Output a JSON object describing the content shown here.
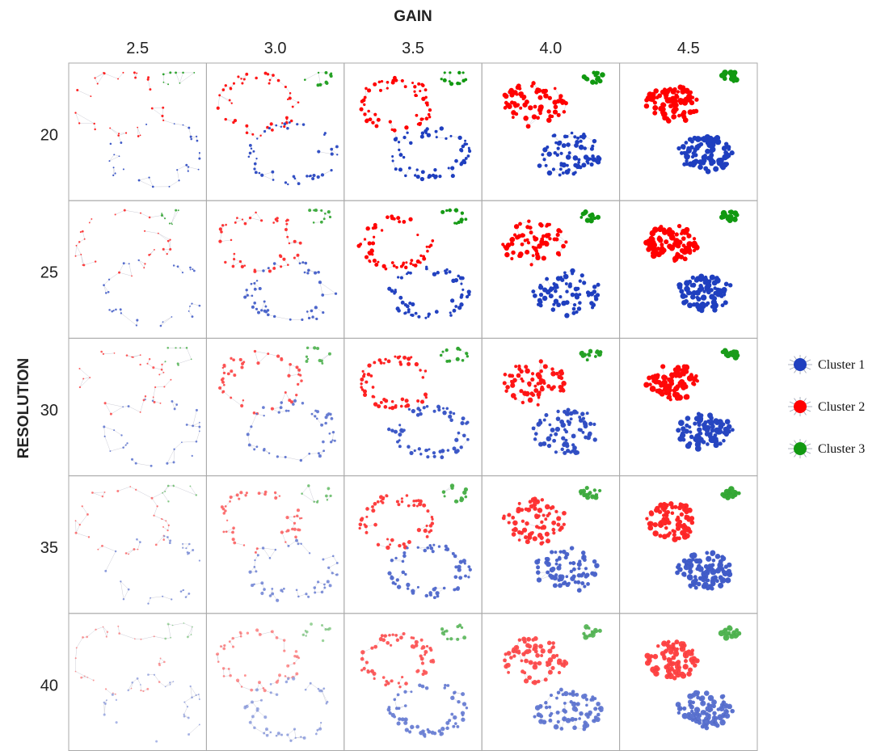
{
  "title": "GAIN",
  "gain_values": [
    "2.5",
    "3.0",
    "3.5",
    "4.0",
    "4.5"
  ],
  "axis_label": "RESOLUTION",
  "resolution_values": [
    "20",
    "25",
    "30",
    "35",
    "40"
  ],
  "legend": [
    {
      "name": "Cluster 1",
      "color": "#1f3fbf"
    },
    {
      "name": "Cluster 2",
      "color": "#ff0000"
    },
    {
      "name": "Cluster 3",
      "color": "#119911"
    }
  ]
}
